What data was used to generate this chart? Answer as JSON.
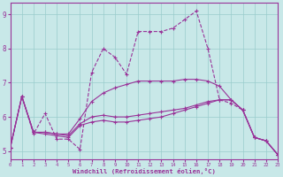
{
  "xlabel": "Windchill (Refroidissement éolien,°C)",
  "bg_color": "#c8e8e8",
  "line_color": "#993399",
  "grid_color": "#99cccc",
  "xlim": [
    0,
    23
  ],
  "ylim": [
    4.75,
    9.35
  ],
  "yticks": [
    5,
    6,
    7,
    8,
    9
  ],
  "xticks": [
    0,
    1,
    2,
    3,
    4,
    5,
    6,
    7,
    8,
    9,
    10,
    11,
    12,
    13,
    14,
    15,
    16,
    17,
    18,
    19,
    20,
    21,
    22,
    23
  ],
  "line1_x": [
    0,
    1,
    2,
    3,
    4,
    5,
    6,
    7,
    8,
    9,
    10,
    11,
    12,
    13,
    14,
    15,
    16,
    17,
    18,
    19,
    20,
    21,
    22,
    23
  ],
  "line1_y": [
    5.1,
    6.6,
    5.5,
    6.1,
    5.35,
    5.35,
    5.05,
    7.3,
    8.0,
    7.75,
    7.25,
    8.5,
    8.5,
    8.5,
    8.6,
    8.85,
    9.1,
    8.0,
    6.5,
    6.4,
    6.2,
    5.4,
    5.3,
    4.9
  ],
  "line2_x": [
    0,
    1,
    2,
    3,
    4,
    5,
    6,
    7,
    8,
    9,
    10,
    11,
    12,
    13,
    14,
    15,
    16,
    17,
    18,
    19,
    20,
    21,
    22,
    23
  ],
  "line2_y": [
    5.1,
    6.6,
    5.55,
    5.5,
    5.45,
    5.4,
    5.75,
    5.85,
    5.9,
    5.85,
    5.85,
    5.9,
    5.95,
    6.0,
    6.1,
    6.2,
    6.3,
    6.4,
    6.5,
    6.5,
    6.2,
    5.4,
    5.3,
    4.9
  ],
  "line3_x": [
    0,
    1,
    2,
    3,
    4,
    5,
    6,
    7,
    8,
    9,
    10,
    11,
    12,
    13,
    14,
    15,
    16,
    17,
    18,
    19,
    20,
    21,
    22,
    23
  ],
  "line3_y": [
    5.1,
    6.6,
    5.55,
    5.55,
    5.5,
    5.45,
    5.8,
    6.0,
    6.05,
    6.0,
    6.0,
    6.05,
    6.1,
    6.15,
    6.2,
    6.25,
    6.35,
    6.45,
    6.5,
    6.5,
    6.2,
    5.4,
    5.3,
    4.9
  ],
  "line4_x": [
    0,
    1,
    2,
    3,
    4,
    5,
    6,
    7,
    8,
    9,
    10,
    11,
    12,
    13,
    14,
    15,
    16,
    17,
    18,
    19,
    20,
    21,
    22,
    23
  ],
  "line4_y": [
    5.1,
    6.6,
    5.55,
    5.55,
    5.5,
    5.5,
    5.95,
    6.45,
    6.7,
    6.85,
    6.95,
    7.05,
    7.05,
    7.05,
    7.05,
    7.1,
    7.1,
    7.05,
    6.9,
    6.5,
    6.2,
    5.4,
    5.3,
    4.9
  ]
}
